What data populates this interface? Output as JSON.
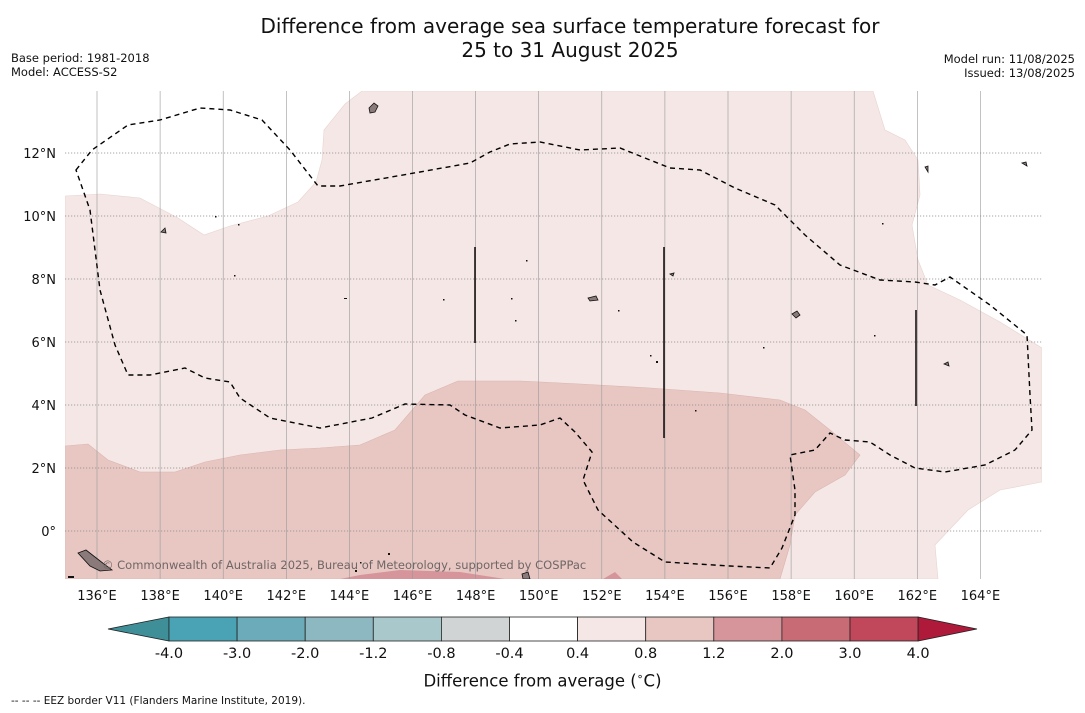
{
  "title_line1": "Difference from average sea surface temperature forecast for",
  "title_line2": "25 to 31 August 2025",
  "meta": {
    "base_period": "Base period: 1981-2018",
    "model": "Model: ACCESS-S2",
    "model_run": "Model run: 11/08/2025",
    "issued": "Issued: 13/08/2025"
  },
  "map": {
    "lon_labels": [
      "136°E",
      "138°E",
      "140°E",
      "142°E",
      "144°E",
      "146°E",
      "148°E",
      "150°E",
      "152°E",
      "154°E",
      "156°E",
      "158°E",
      "160°E",
      "162°E",
      "164°E"
    ],
    "lat_labels": [
      "12°N",
      "10°N",
      "8°N",
      "6°N",
      "4°N",
      "2°N",
      "0°"
    ],
    "lon_range": [
      135,
      166
    ],
    "lat_range": [
      -1.5,
      14
    ],
    "watermark": "© Commonwealth of Australia 2025, Bureau of Meteorology, supported by COSPPac",
    "colors": {
      "anomaly_0_4_0_8": "#f4e7e5",
      "anomaly_0_8_1_2": "#e8c7c3",
      "anomaly_1_2_2_0": "#d6959b",
      "land": "#8a7a7a"
    }
  },
  "colorbar": {
    "label": "Difference from average (",
    "label_deg": "∘",
    "label_unit": "C)",
    "ticks": [
      "-4.0",
      "-3.0",
      "-2.0",
      "-1.2",
      "-0.8",
      "-0.4",
      "0.4",
      "0.8",
      "1.2",
      "2.0",
      "3.0",
      "4.0"
    ],
    "colors": [
      "#3f8f99",
      "#4aa3b4",
      "#6cabb9",
      "#8db8c2",
      "#a9c8cc",
      "#d0d4d4",
      "#ffffff",
      "#f4e7e5",
      "#e8c7c3",
      "#d6959b",
      "#c96b74",
      "#c0485a",
      "#b01a3a"
    ]
  },
  "footer": "-- -- -- EEZ border V11 (Flanders Marine Institute, 2019)."
}
